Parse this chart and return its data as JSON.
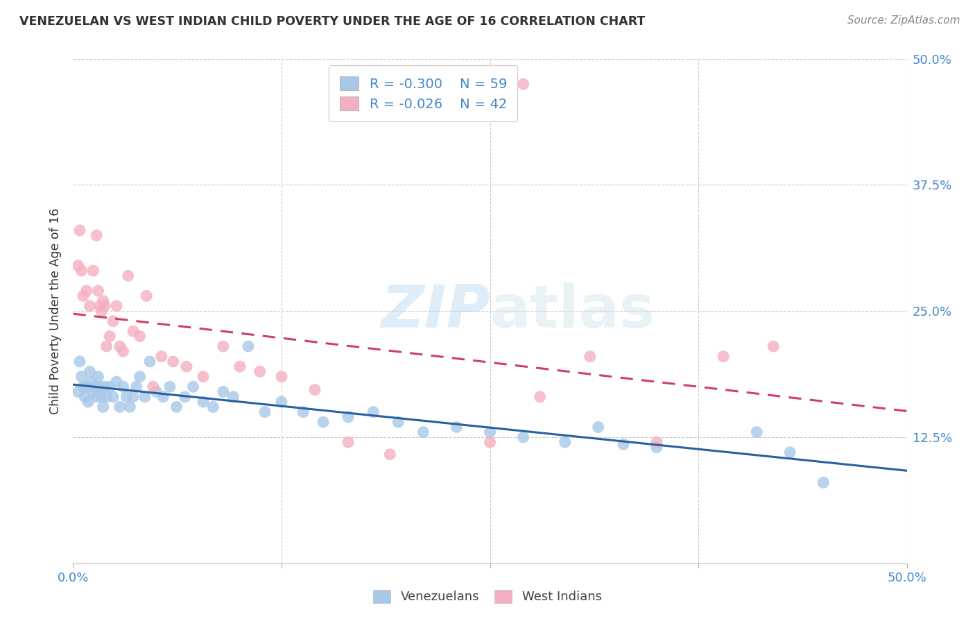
{
  "title": "VENEZUELAN VS WEST INDIAN CHILD POVERTY UNDER THE AGE OF 16 CORRELATION CHART",
  "source": "Source: ZipAtlas.com",
  "ylabel": "Child Poverty Under the Age of 16",
  "xlim": [
    0.0,
    0.5
  ],
  "ylim": [
    0.0,
    0.5
  ],
  "venezuelan_color": "#a8c8e8",
  "west_indian_color": "#f4b0c0",
  "venezuelan_line_color": "#2860a0",
  "west_indian_line_color": "#d04060",
  "venezuelan_R": -0.3,
  "venezuelan_N": 59,
  "west_indian_R": -0.026,
  "west_indian_N": 42,
  "background_color": "#ffffff",
  "grid_color": "#cccccc",
  "label_color": "#4488cc",
  "watermark_zip": "ZIP",
  "watermark_atlas": "atlas",
  "venezuelan_x": [
    0.003,
    0.004,
    0.005,
    0.006,
    0.007,
    0.008,
    0.009,
    0.01,
    0.011,
    0.012,
    0.013,
    0.014,
    0.015,
    0.016,
    0.017,
    0.018,
    0.019,
    0.02,
    0.022,
    0.024,
    0.026,
    0.028,
    0.03,
    0.032,
    0.034,
    0.036,
    0.038,
    0.04,
    0.043,
    0.046,
    0.05,
    0.054,
    0.058,
    0.062,
    0.067,
    0.072,
    0.078,
    0.084,
    0.09,
    0.096,
    0.105,
    0.115,
    0.125,
    0.138,
    0.15,
    0.165,
    0.18,
    0.195,
    0.21,
    0.23,
    0.25,
    0.27,
    0.295,
    0.315,
    0.33,
    0.35,
    0.41,
    0.43,
    0.45
  ],
  "venezuelan_y": [
    0.17,
    0.2,
    0.185,
    0.175,
    0.165,
    0.175,
    0.16,
    0.19,
    0.18,
    0.17,
    0.175,
    0.165,
    0.185,
    0.175,
    0.165,
    0.155,
    0.175,
    0.165,
    0.175,
    0.165,
    0.18,
    0.155,
    0.175,
    0.165,
    0.155,
    0.165,
    0.175,
    0.185,
    0.165,
    0.2,
    0.17,
    0.165,
    0.175,
    0.155,
    0.165,
    0.175,
    0.16,
    0.155,
    0.17,
    0.165,
    0.215,
    0.15,
    0.16,
    0.15,
    0.14,
    0.145,
    0.15,
    0.14,
    0.13,
    0.135,
    0.13,
    0.125,
    0.12,
    0.135,
    0.118,
    0.115,
    0.13,
    0.11,
    0.08
  ],
  "west_indian_x": [
    0.003,
    0.004,
    0.005,
    0.006,
    0.008,
    0.01,
    0.012,
    0.014,
    0.015,
    0.016,
    0.017,
    0.018,
    0.019,
    0.02,
    0.022,
    0.024,
    0.026,
    0.028,
    0.03,
    0.033,
    0.036,
    0.04,
    0.044,
    0.048,
    0.053,
    0.06,
    0.068,
    0.078,
    0.09,
    0.1,
    0.112,
    0.125,
    0.145,
    0.165,
    0.19,
    0.25,
    0.28,
    0.31,
    0.35,
    0.39,
    0.27,
    0.42
  ],
  "west_indian_y": [
    0.295,
    0.33,
    0.29,
    0.265,
    0.27,
    0.255,
    0.29,
    0.325,
    0.27,
    0.255,
    0.25,
    0.26,
    0.255,
    0.215,
    0.225,
    0.24,
    0.255,
    0.215,
    0.21,
    0.285,
    0.23,
    0.225,
    0.265,
    0.175,
    0.205,
    0.2,
    0.195,
    0.185,
    0.215,
    0.195,
    0.19,
    0.185,
    0.172,
    0.12,
    0.108,
    0.12,
    0.165,
    0.205,
    0.12,
    0.205,
    0.475,
    0.215
  ]
}
